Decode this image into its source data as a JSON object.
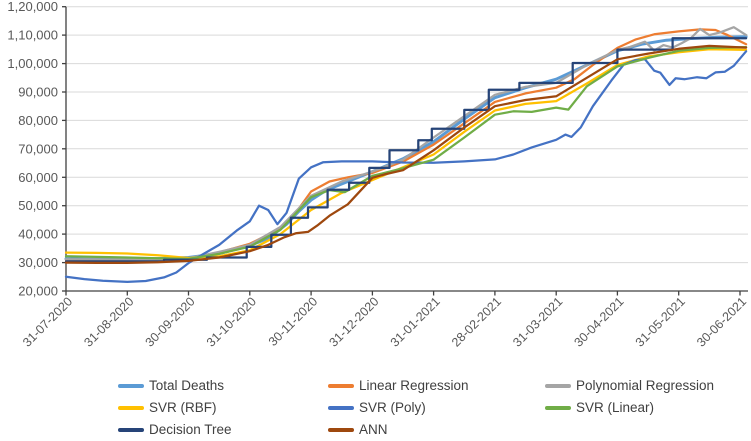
{
  "chart_data": {
    "type": "line",
    "title": "",
    "xlabel": "",
    "ylabel": "",
    "grid": "horizontal",
    "legend_position": "bottom",
    "y_axis_range": [
      20000,
      120000
    ],
    "y_ticks": [
      {
        "value": 120000,
        "label": "1,20,000"
      },
      {
        "value": 110000,
        "label": "1,10,000"
      },
      {
        "value": 100000,
        "label": "1,00,000"
      },
      {
        "value": 90000,
        "label": "90,000"
      },
      {
        "value": 80000,
        "label": "80,000"
      },
      {
        "value": 70000,
        "label": "70,000"
      },
      {
        "value": 60000,
        "label": "60,000"
      },
      {
        "value": 50000,
        "label": "50,000"
      },
      {
        "value": 40000,
        "label": "40,000"
      },
      {
        "value": 30000,
        "label": "30,000"
      },
      {
        "value": 20000,
        "label": "20,000"
      }
    ],
    "x_tick_labels": [
      "31-07-2020",
      "31-08-2020",
      "30-09-2020",
      "31-10-2020",
      "30-11-2020",
      "31-12-2020",
      "31-01-2021",
      "28-02-2021",
      "31-03-2021",
      "30-04-2021",
      "31-05-2021",
      "30-06-2021"
    ],
    "x_unit_note": "x values below are months after 31-07-2020",
    "series": [
      {
        "name": "Total Deaths",
        "color": "#5B9BD5",
        "width": 3,
        "points": [
          [
            0,
            31300
          ],
          [
            0.5,
            31200
          ],
          [
            1,
            31200
          ],
          [
            1.5,
            31400
          ],
          [
            2,
            31800
          ],
          [
            2.5,
            33200
          ],
          [
            3,
            36000
          ],
          [
            3.3,
            38500
          ],
          [
            3.6,
            43500
          ],
          [
            3.8,
            48000
          ],
          [
            4,
            52000
          ],
          [
            4.25,
            55500
          ],
          [
            4.6,
            58500
          ],
          [
            5,
            62000
          ],
          [
            5.5,
            66500
          ],
          [
            6,
            72500
          ],
          [
            6.5,
            80500
          ],
          [
            7,
            88000
          ],
          [
            7.5,
            91500
          ],
          [
            8,
            94500
          ],
          [
            8.5,
            99500
          ],
          [
            9,
            104500
          ],
          [
            9.4,
            106800
          ],
          [
            9.8,
            108200
          ],
          [
            10.2,
            108800
          ],
          [
            10.6,
            109200
          ],
          [
            11.1,
            109400
          ]
        ]
      },
      {
        "name": "Linear Regression",
        "color": "#ED7D31",
        "width": 2.25,
        "points": [
          [
            0,
            31000
          ],
          [
            0.5,
            30800
          ],
          [
            1,
            30800
          ],
          [
            1.5,
            31000
          ],
          [
            2,
            31400
          ],
          [
            2.5,
            33600
          ],
          [
            3,
            36600
          ],
          [
            3.5,
            42000
          ],
          [
            3.8,
            49000
          ],
          [
            4,
            55000
          ],
          [
            4.3,
            58500
          ],
          [
            4.6,
            60000
          ],
          [
            5,
            61500
          ],
          [
            5.5,
            65500
          ],
          [
            6,
            71500
          ],
          [
            6.5,
            79000
          ],
          [
            7,
            86500
          ],
          [
            7.5,
            89500
          ],
          [
            8,
            91500
          ],
          [
            8.3,
            94500
          ],
          [
            8.6,
            99500
          ],
          [
            9,
            105500
          ],
          [
            9.3,
            108500
          ],
          [
            9.6,
            110300
          ],
          [
            10,
            111300
          ],
          [
            10.35,
            112000
          ],
          [
            10.6,
            111800
          ],
          [
            10.8,
            110000
          ],
          [
            11.1,
            106800
          ]
        ]
      },
      {
        "name": "Polynomial Regression",
        "color": "#A5A5A5",
        "width": 2.25,
        "points": [
          [
            0,
            31200
          ],
          [
            0.5,
            31100
          ],
          [
            1,
            31000
          ],
          [
            1.5,
            31200
          ],
          [
            2,
            31500
          ],
          [
            2.5,
            33800
          ],
          [
            3,
            36200
          ],
          [
            3.5,
            42500
          ],
          [
            4,
            53500
          ],
          [
            4.5,
            58500
          ],
          [
            5,
            62000
          ],
          [
            5.5,
            66200
          ],
          [
            6,
            74000
          ],
          [
            6.5,
            81500
          ],
          [
            7,
            89000
          ],
          [
            7.5,
            91800
          ],
          [
            8,
            93200
          ],
          [
            8.5,
            99500
          ],
          [
            9,
            104800
          ],
          [
            9.2,
            105800
          ],
          [
            9.45,
            107700
          ],
          [
            9.6,
            104600
          ],
          [
            9.75,
            106500
          ],
          [
            9.9,
            105600
          ],
          [
            10.05,
            107200
          ],
          [
            10.2,
            109000
          ],
          [
            10.35,
            112200
          ],
          [
            10.5,
            110000
          ],
          [
            10.68,
            111000
          ],
          [
            10.9,
            112800
          ],
          [
            11.1,
            110000
          ]
        ]
      },
      {
        "name": "SVR (RBF)",
        "color": "#FFC000",
        "width": 2.25,
        "points": [
          [
            0,
            33500
          ],
          [
            0.5,
            33400
          ],
          [
            1,
            33200
          ],
          [
            1.5,
            32600
          ],
          [
            2,
            31600
          ],
          [
            2.5,
            32200
          ],
          [
            3,
            34300
          ],
          [
            3.5,
            40000
          ],
          [
            4,
            48500
          ],
          [
            4.5,
            54500
          ],
          [
            5,
            59000
          ],
          [
            5.5,
            63500
          ],
          [
            6,
            68000
          ],
          [
            6.5,
            76000
          ],
          [
            7,
            83500
          ],
          [
            7.5,
            85800
          ],
          [
            8,
            86800
          ],
          [
            8.5,
            93000
          ],
          [
            9,
            99500
          ],
          [
            9.5,
            102500
          ],
          [
            10,
            104000
          ],
          [
            10.5,
            105000
          ],
          [
            11.1,
            104800
          ]
        ]
      },
      {
        "name": "SVR (Poly)",
        "color": "#4472C4",
        "width": 2.25,
        "points": [
          [
            0,
            25000
          ],
          [
            0.3,
            24200
          ],
          [
            0.6,
            23600
          ],
          [
            1,
            23200
          ],
          [
            1.3,
            23500
          ],
          [
            1.6,
            24800
          ],
          [
            1.8,
            26500
          ],
          [
            2,
            29800
          ],
          [
            2.2,
            32500
          ],
          [
            2.5,
            36200
          ],
          [
            2.8,
            41500
          ],
          [
            3,
            44500
          ],
          [
            3.15,
            50000
          ],
          [
            3.3,
            48500
          ],
          [
            3.45,
            43500
          ],
          [
            3.6,
            47500
          ],
          [
            3.8,
            59500
          ],
          [
            4,
            63500
          ],
          [
            4.2,
            65300
          ],
          [
            4.5,
            65600
          ],
          [
            5,
            65600
          ],
          [
            5.5,
            65200
          ],
          [
            6,
            65100
          ],
          [
            6.5,
            65600
          ],
          [
            7,
            66300
          ],
          [
            7.3,
            68000
          ],
          [
            7.6,
            70500
          ],
          [
            8,
            73200
          ],
          [
            8.15,
            75000
          ],
          [
            8.25,
            74200
          ],
          [
            8.4,
            77500
          ],
          [
            8.6,
            85000
          ],
          [
            8.9,
            94000
          ],
          [
            9.1,
            99600
          ],
          [
            9.3,
            101200
          ],
          [
            9.45,
            101500
          ],
          [
            9.6,
            97500
          ],
          [
            9.7,
            96800
          ],
          [
            9.85,
            92500
          ],
          [
            9.95,
            94800
          ],
          [
            10.1,
            94500
          ],
          [
            10.3,
            95200
          ],
          [
            10.45,
            94800
          ],
          [
            10.6,
            96900
          ],
          [
            10.75,
            97100
          ],
          [
            10.9,
            99200
          ],
          [
            11.1,
            104300
          ]
        ]
      },
      {
        "name": "SVR (Linear)",
        "color": "#70AD47",
        "width": 2.25,
        "points": [
          [
            0,
            32200
          ],
          [
            0.5,
            32000
          ],
          [
            1,
            31800
          ],
          [
            1.5,
            31500
          ],
          [
            2,
            31300
          ],
          [
            2.5,
            33100
          ],
          [
            3,
            35600
          ],
          [
            3.5,
            41500
          ],
          [
            4,
            53000
          ],
          [
            4.3,
            55500
          ],
          [
            4.55,
            54800
          ],
          [
            5,
            60500
          ],
          [
            5.5,
            63200
          ],
          [
            6,
            66200
          ],
          [
            6.5,
            74000
          ],
          [
            7,
            82000
          ],
          [
            7.3,
            83200
          ],
          [
            7.6,
            83000
          ],
          [
            8,
            84500
          ],
          [
            8.2,
            83800
          ],
          [
            8.5,
            92000
          ],
          [
            9,
            99000
          ],
          [
            9.5,
            102000
          ],
          [
            10,
            104500
          ],
          [
            10.5,
            105500
          ],
          [
            11.1,
            105800
          ]
        ]
      },
      {
        "name": "Decision Tree",
        "color": "#264478",
        "width": 2.25,
        "points": [
          [
            0,
            30400
          ],
          [
            1.6,
            30400
          ],
          [
            1.6,
            31000
          ],
          [
            2.3,
            31000
          ],
          [
            2.3,
            31800
          ],
          [
            2.95,
            31800
          ],
          [
            2.95,
            35500
          ],
          [
            3.35,
            35500
          ],
          [
            3.35,
            39800
          ],
          [
            3.67,
            39800
          ],
          [
            3.67,
            45800
          ],
          [
            3.95,
            45800
          ],
          [
            3.95,
            49400
          ],
          [
            4.27,
            49400
          ],
          [
            4.27,
            55600
          ],
          [
            4.62,
            55600
          ],
          [
            4.62,
            58100
          ],
          [
            4.95,
            58100
          ],
          [
            4.95,
            63300
          ],
          [
            5.28,
            63300
          ],
          [
            5.28,
            69500
          ],
          [
            5.75,
            69500
          ],
          [
            5.75,
            73000
          ],
          [
            5.97,
            73000
          ],
          [
            5.97,
            77100
          ],
          [
            6.5,
            77100
          ],
          [
            6.5,
            83700
          ],
          [
            6.9,
            83700
          ],
          [
            6.9,
            90800
          ],
          [
            7.4,
            90800
          ],
          [
            7.4,
            93200
          ],
          [
            8.27,
            93200
          ],
          [
            8.27,
            100200
          ],
          [
            9.0,
            100200
          ],
          [
            9.0,
            104900
          ],
          [
            9.9,
            104900
          ],
          [
            9.9,
            108900
          ],
          [
            11.1,
            108900
          ]
        ]
      },
      {
        "name": "ANN",
        "color": "#9E480E",
        "width": 2.25,
        "points": [
          [
            0,
            30000
          ],
          [
            0.5,
            29900
          ],
          [
            1,
            29900
          ],
          [
            1.5,
            30100
          ],
          [
            2,
            30600
          ],
          [
            2.5,
            31800
          ],
          [
            3,
            34000
          ],
          [
            3.3,
            36200
          ],
          [
            3.55,
            38800
          ],
          [
            3.75,
            40300
          ],
          [
            3.95,
            40800
          ],
          [
            4.1,
            43000
          ],
          [
            4.3,
            46500
          ],
          [
            4.6,
            50500
          ],
          [
            5,
            59800
          ],
          [
            5.2,
            61000
          ],
          [
            5.5,
            62500
          ],
          [
            6,
            69500
          ],
          [
            6.5,
            77500
          ],
          [
            7,
            85000
          ],
          [
            7.5,
            87200
          ],
          [
            8,
            88500
          ],
          [
            8.5,
            95000
          ],
          [
            9,
            101500
          ],
          [
            9.5,
            103500
          ],
          [
            10,
            105200
          ],
          [
            10.5,
            106200
          ],
          [
            11.1,
            105600
          ]
        ]
      }
    ]
  }
}
